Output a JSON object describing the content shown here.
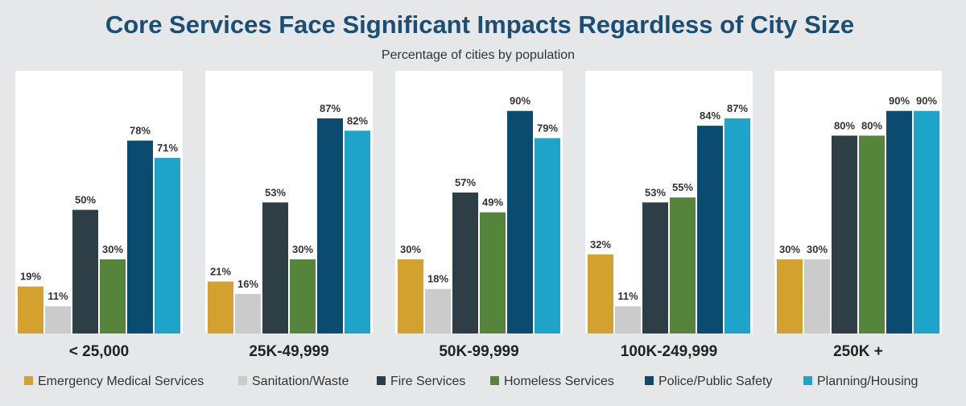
{
  "chart_data": {
    "type": "bar",
    "title": "Core Services Face Significant Impacts Regardless of City Size",
    "subtitle": "Percentage of cities by population",
    "categories": [
      "< 25,000",
      "25K-49,999",
      "50K-99,999",
      "100K-249,999",
      "250K +"
    ],
    "series": [
      {
        "name": "Emergency Medical Services",
        "color": "#d3a12e",
        "values": [
          19,
          21,
          30,
          32,
          30
        ]
      },
      {
        "name": "Sanitation/Waste",
        "color": "#cbcbcb",
        "values": [
          11,
          16,
          18,
          11,
          30
        ]
      },
      {
        "name": "Fire Services",
        "color": "#2d3e46",
        "values": [
          50,
          53,
          57,
          53,
          80
        ]
      },
      {
        "name": "Homeless Services",
        "color": "#55843b",
        "values": [
          30,
          30,
          49,
          55,
          80
        ]
      },
      {
        "name": "Police/Public Safety",
        "color": "#0c4b70",
        "values": [
          78,
          87,
          90,
          84,
          90
        ]
      },
      {
        "name": "Planning/Housing",
        "color": "#1ea3cb",
        "values": [
          71,
          82,
          79,
          87,
          90
        ]
      }
    ],
    "value_suffix": "%",
    "ylim": [
      0,
      100
    ],
    "grid": false,
    "legend": "bottom",
    "group_background": "#ffffff"
  }
}
